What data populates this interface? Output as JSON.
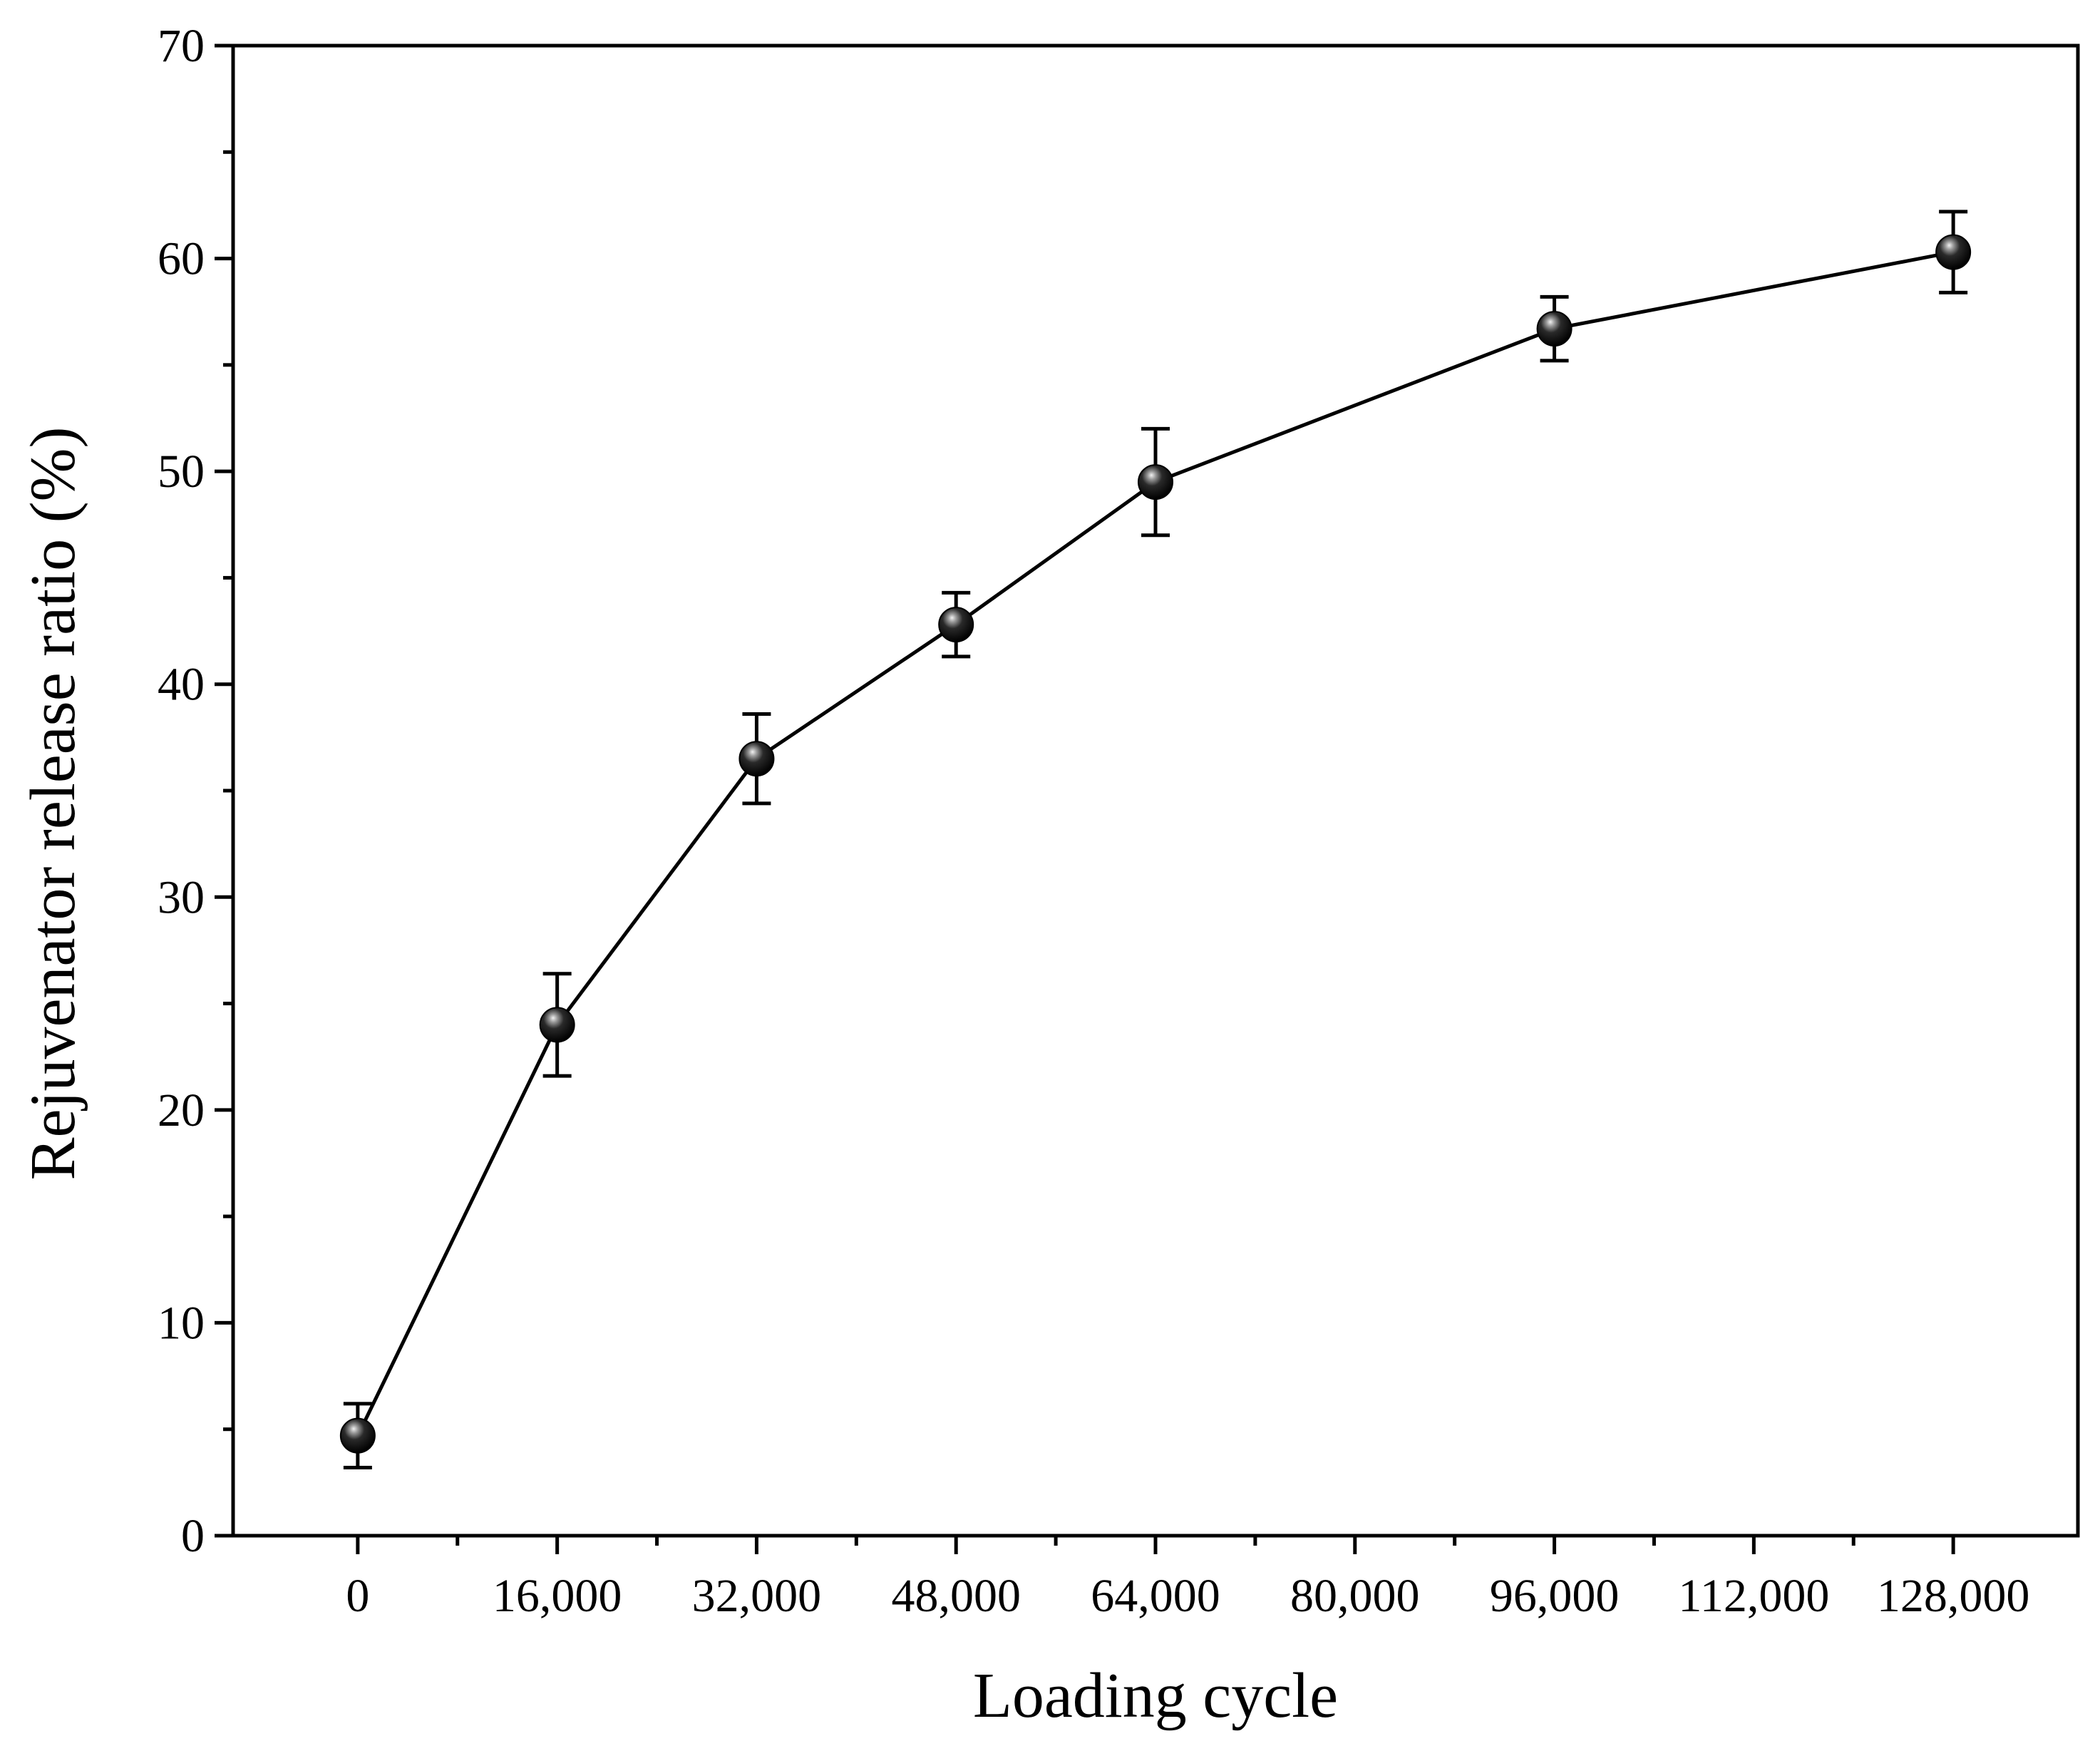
{
  "chart_data": {
    "type": "line",
    "title": "",
    "xlabel": "Loading cycle",
    "ylabel": "Rejuvenator release ratio (%)",
    "xlim": [
      -10000,
      138000
    ],
    "ylim": [
      0,
      70
    ],
    "x_ticks": [
      0,
      16000,
      32000,
      48000,
      64000,
      80000,
      96000,
      112000,
      128000
    ],
    "x_tick_labels": [
      "0",
      "16,000",
      "32,000",
      "48,000",
      "64,000",
      "80,000",
      "96,000",
      "112,000",
      "128,000"
    ],
    "y_ticks": [
      0,
      10,
      20,
      30,
      40,
      50,
      60,
      70
    ],
    "y_tick_labels": [
      "0",
      "10",
      "20",
      "30",
      "40",
      "50",
      "60",
      "70"
    ],
    "y_minor_step": 5,
    "grid": false,
    "legend": false,
    "series": [
      {
        "x": [
          0,
          16000,
          32000,
          48000,
          64000,
          96000,
          128000
        ],
        "y": [
          4.7,
          24.0,
          36.5,
          42.8,
          49.5,
          56.7,
          60.3
        ],
        "error": [
          1.5,
          2.4,
          2.1,
          1.5,
          2.5,
          1.5,
          1.9
        ],
        "color": "#000000",
        "marker": "sphere"
      }
    ]
  }
}
